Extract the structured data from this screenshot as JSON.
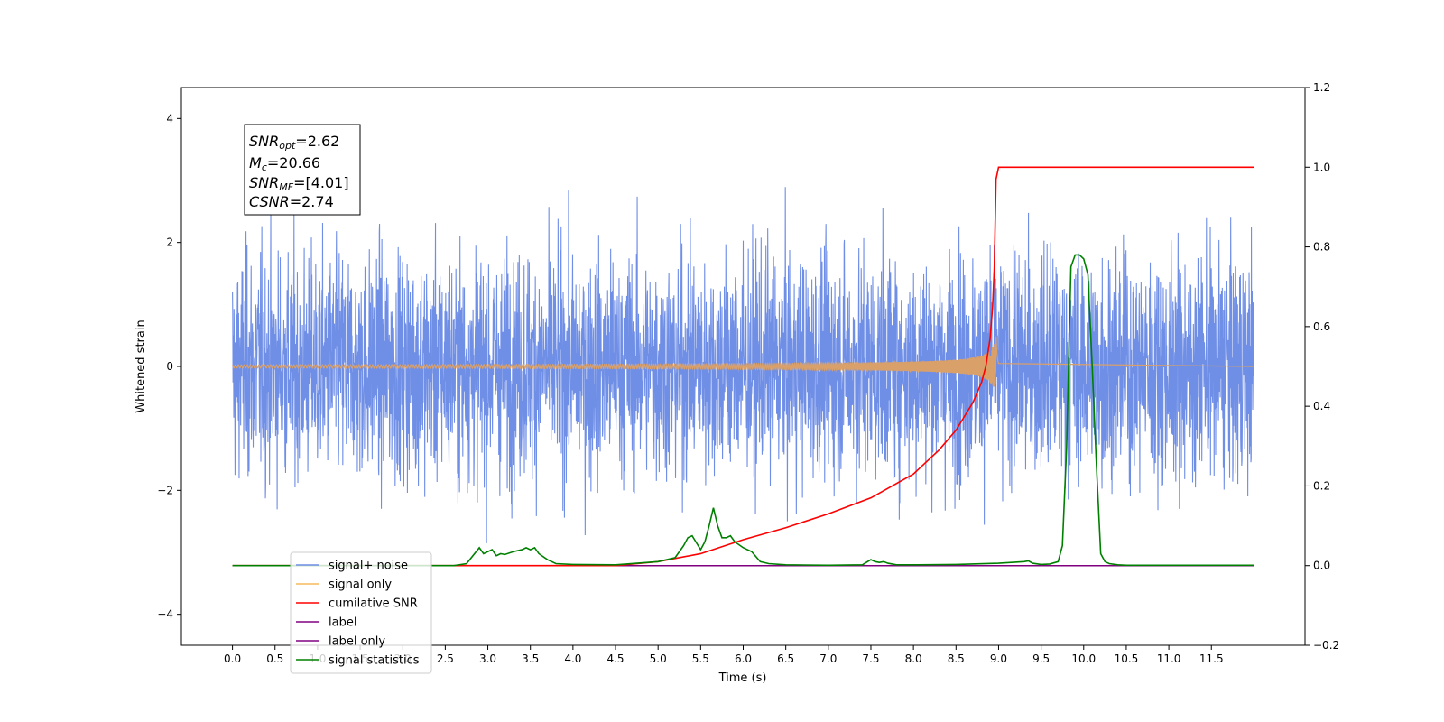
{
  "chart_data": {
    "type": "line",
    "xlabel": "Time (s)",
    "ylabel": "Whitened strain",
    "xlim": [
      -0.6,
      12.6
    ],
    "ylim_left": [
      -4.5,
      4.5
    ],
    "ylim_right": [
      -0.2,
      1.2
    ],
    "x_ticks": [
      "0.0",
      "0.5",
      "1.0",
      "1.5",
      "2.0",
      "2.5",
      "3.0",
      "3.5",
      "4.0",
      "4.5",
      "5.0",
      "5.5",
      "6.0",
      "6.5",
      "7.0",
      "7.5",
      "8.0",
      "8.5",
      "9.0",
      "9.5",
      "10.0",
      "10.5",
      "11.0",
      "11.5"
    ],
    "y_ticks_left": [
      "−4",
      "−2",
      "0",
      "2",
      "4"
    ],
    "y_ticks_right": [
      "−0.2",
      "0.0",
      "0.2",
      "0.4",
      "0.6",
      "0.8",
      "1.0",
      "1.2"
    ],
    "annotation": {
      "line1": {
        "name": "SNR",
        "sub": "opt",
        "value": "=2.62"
      },
      "line2": {
        "name": "M",
        "sub": "c",
        "value": "=20.66"
      },
      "line3": {
        "name": "SNR",
        "sub": "MF",
        "value": "=[4.01]"
      },
      "line4": {
        "name": "CSNR",
        "sub": "",
        "value": "=2.74"
      }
    },
    "legend": {
      "placement": "lower-left",
      "entries": [
        {
          "label": "signal+ noise",
          "color": "#6f8ee6"
        },
        {
          "label": "signal only",
          "color": "#f5b85a"
        },
        {
          "label": "cumilative SNR",
          "color": "#ff0000"
        },
        {
          "label": "label",
          "color": "#800080"
        },
        {
          "label": "label only",
          "color": "#800080"
        },
        {
          "label": "signal statistics",
          "color": "#008000"
        }
      ]
    },
    "series": [
      {
        "name": "signal+ noise",
        "axis": "left",
        "color": "#6f8ee6",
        "description": "white noise, approx std 0.9, x from 0 to 12",
        "x_range": [
          0.0,
          12.0
        ],
        "noise_std": 0.9
      },
      {
        "name": "signal only",
        "axis": "left",
        "color": "#d9a06a",
        "x_range": [
          0.0,
          9.0
        ],
        "chirp_peak_time": 8.97,
        "peak_amplitude": 0.55
      },
      {
        "name": "cumilative SNR",
        "axis": "right",
        "color": "#ff0000",
        "x": [
          0.0,
          4.5,
          5.0,
          5.5,
          6.0,
          6.5,
          7.0,
          7.5,
          8.0,
          8.3,
          8.5,
          8.7,
          8.8,
          8.85,
          8.9,
          8.93,
          8.95,
          8.97,
          9.0,
          12.0
        ],
        "y": [
          0.0,
          0.0,
          0.01,
          0.03,
          0.065,
          0.095,
          0.13,
          0.17,
          0.23,
          0.29,
          0.34,
          0.41,
          0.46,
          0.5,
          0.57,
          0.65,
          0.75,
          0.97,
          1.0,
          1.0
        ]
      },
      {
        "name": "label",
        "axis": "right",
        "color": "#800080",
        "x": [
          0.0,
          12.0
        ],
        "y": [
          0.0,
          0.0
        ]
      },
      {
        "name": "signal statistics",
        "axis": "right",
        "color": "#008000",
        "x": [
          0.0,
          2.6,
          2.75,
          2.9,
          2.95,
          3.05,
          3.1,
          3.15,
          3.2,
          3.3,
          3.4,
          3.45,
          3.5,
          3.55,
          3.6,
          3.7,
          3.8,
          4.0,
          4.5,
          5.0,
          5.2,
          5.3,
          5.35,
          5.4,
          5.5,
          5.55,
          5.6,
          5.65,
          5.7,
          5.75,
          5.8,
          5.85,
          5.9,
          6.0,
          6.1,
          6.2,
          6.3,
          6.5,
          7.0,
          7.4,
          7.5,
          7.55,
          7.6,
          7.65,
          7.7,
          7.8,
          8.0,
          8.5,
          9.0,
          9.3,
          9.35,
          9.4,
          9.5,
          9.6,
          9.7,
          9.75,
          9.8,
          9.85,
          9.9,
          9.95,
          10.0,
          10.05,
          10.1,
          10.15,
          10.2,
          10.25,
          10.3,
          10.4,
          10.5,
          12.0
        ],
        "y": [
          0.0,
          0.0,
          0.005,
          0.045,
          0.03,
          0.04,
          0.025,
          0.03,
          0.028,
          0.035,
          0.04,
          0.045,
          0.04,
          0.045,
          0.03,
          0.015,
          0.005,
          0.003,
          0.002,
          0.01,
          0.02,
          0.05,
          0.07,
          0.075,
          0.04,
          0.06,
          0.1,
          0.145,
          0.1,
          0.07,
          0.07,
          0.075,
          0.06,
          0.045,
          0.035,
          0.01,
          0.005,
          0.002,
          0.001,
          0.002,
          0.015,
          0.01,
          0.008,
          0.01,
          0.006,
          0.002,
          0.002,
          0.003,
          0.006,
          0.01,
          0.012,
          0.006,
          0.003,
          0.004,
          0.01,
          0.05,
          0.3,
          0.75,
          0.78,
          0.78,
          0.77,
          0.73,
          0.5,
          0.25,
          0.03,
          0.01,
          0.005,
          0.002,
          0.001,
          0.001
        ]
      }
    ]
  }
}
